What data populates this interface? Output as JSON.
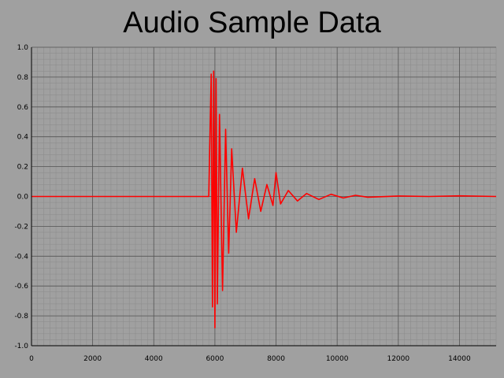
{
  "chart_data": {
    "type": "line",
    "title": "Audio Sample Data",
    "xlabel": "",
    "ylabel": "",
    "xlim": [
      0,
      15200
    ],
    "ylim": [
      -1.0,
      1.0
    ],
    "x_ticks": [
      0,
      2000,
      4000,
      6000,
      8000,
      10000,
      12000,
      14000
    ],
    "x_tick_labels": [
      "0",
      "2000",
      "4000",
      "6000",
      "8000",
      "10000",
      "12000",
      "14000"
    ],
    "y_ticks": [
      -1.0,
      -0.8,
      -0.6,
      -0.4,
      -0.2,
      0.0,
      0.2,
      0.4,
      0.6,
      0.8,
      1.0
    ],
    "y_tick_labels": [
      "-1.0",
      "-0.8",
      "-0.6",
      "-0.4",
      "-0.2",
      "0.0",
      "0.2",
      "0.4",
      "0.6",
      "0.8",
      "1.0"
    ],
    "grid": true,
    "series": [
      {
        "color": "#ff0000",
        "x": [
          0,
          2000,
          4000,
          5800,
          5880,
          5920,
          5960,
          6000,
          6040,
          6080,
          6150,
          6250,
          6350,
          6450,
          6550,
          6700,
          6900,
          7100,
          7300,
          7500,
          7700,
          7900,
          8000,
          8150,
          8400,
          8700,
          9000,
          9400,
          9800,
          10200,
          10600,
          11000,
          12000,
          13000,
          14000,
          15200
        ],
        "values": [
          0.0,
          0.0,
          0.0,
          0.0,
          0.82,
          -0.74,
          0.84,
          -0.88,
          0.79,
          -0.72,
          0.55,
          -0.63,
          0.45,
          -0.38,
          0.32,
          -0.24,
          0.19,
          -0.15,
          0.12,
          -0.1,
          0.08,
          -0.06,
          0.16,
          -0.05,
          0.04,
          -0.03,
          0.02,
          -0.02,
          0.015,
          -0.01,
          0.008,
          -0.005,
          0.003,
          0.0,
          0.004,
          0.0
        ]
      }
    ]
  }
}
